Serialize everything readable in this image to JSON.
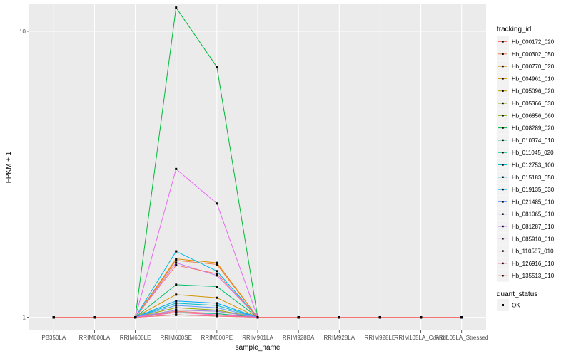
{
  "chart_data": {
    "type": "line",
    "title": "",
    "xlabel": "sample_name",
    "ylabel": "FPKM + 1",
    "y_scale": "log10",
    "y_ticks": [
      1,
      10
    ],
    "y_tick_labels": [
      "1",
      "10"
    ],
    "ylim": [
      0.9,
      12.5
    ],
    "grid": true,
    "legend_position": "right",
    "categories": [
      "PB350LA",
      "RRIM600LA",
      "RRIM600LE",
      "RRIM600SE",
      "RRIM600PE",
      "RRIM901LA",
      "RRIM928BA",
      "RRIM928LA",
      "RRIM928LE",
      "RRIM105LA_Control",
      "RRII105LA_Stressed"
    ],
    "series": [
      {
        "name": "Hb_000172_020",
        "color": "#F8766D",
        "values": [
          1,
          1,
          1,
          1.05,
          1.03,
          1,
          1,
          1,
          1,
          1,
          1
        ]
      },
      {
        "name": "Hb_000302_050",
        "color": "#EF7F49",
        "values": [
          1,
          1,
          1,
          1.58,
          1.53,
          1,
          1,
          1,
          1,
          1,
          1
        ]
      },
      {
        "name": "Hb_000770_020",
        "color": "#E08B00",
        "values": [
          1,
          1,
          1,
          1.6,
          1.55,
          1,
          1,
          1,
          1,
          1,
          1
        ]
      },
      {
        "name": "Hb_004961_010",
        "color": "#CE9700",
        "values": [
          1,
          1,
          1,
          1.2,
          1.17,
          1,
          1,
          1,
          1,
          1,
          1
        ]
      },
      {
        "name": "Hb_005096_020",
        "color": "#B79F00",
        "values": [
          1,
          1,
          1,
          1.06,
          1.05,
          1,
          1,
          1,
          1,
          1,
          1
        ]
      },
      {
        "name": "Hb_005366_030",
        "color": "#9AA800",
        "values": [
          1,
          1,
          1,
          1.08,
          1.06,
          1,
          1,
          1,
          1,
          1,
          1
        ]
      },
      {
        "name": "Hb_006856_060",
        "color": "#72B000",
        "values": [
          1,
          1,
          1,
          1.02,
          1.01,
          1,
          1,
          1,
          1,
          1,
          1
        ]
      },
      {
        "name": "Hb_008289_020",
        "color": "#00BA38",
        "values": [
          1,
          1,
          1,
          12.1,
          7.5,
          1,
          1,
          1,
          1,
          1,
          1
        ]
      },
      {
        "name": "Hb_010374_010",
        "color": "#00BE6C",
        "values": [
          1,
          1,
          1,
          1.3,
          1.28,
          1,
          1,
          1,
          1,
          1,
          1
        ]
      },
      {
        "name": "Hb_011045_020",
        "color": "#00C08B",
        "values": [
          1,
          1,
          1,
          1.04,
          1.03,
          1,
          1,
          1,
          1,
          1,
          1
        ]
      },
      {
        "name": "Hb_012753_100",
        "color": "#00BFC4",
        "values": [
          1,
          1,
          1,
          1.12,
          1.1,
          1,
          1,
          1,
          1,
          1,
          1
        ]
      },
      {
        "name": "Hb_015183_050",
        "color": "#00B8E7",
        "values": [
          1,
          1,
          1,
          1.7,
          1.45,
          1,
          1,
          1,
          1,
          1,
          1
        ]
      },
      {
        "name": "Hb_019135_030",
        "color": "#00A9FF",
        "values": [
          1,
          1,
          1,
          1.14,
          1.12,
          1,
          1,
          1,
          1,
          1,
          1
        ]
      },
      {
        "name": "Hb_021485_010",
        "color": "#619CFF",
        "values": [
          1,
          1,
          1,
          1.1,
          1.08,
          1,
          1,
          1,
          1,
          1,
          1
        ]
      },
      {
        "name": "Hb_081065_010",
        "color": "#9F8CFF",
        "values": [
          1,
          1,
          1,
          1.06,
          1.05,
          1,
          1,
          1,
          1,
          1,
          1
        ]
      },
      {
        "name": "Hb_081287_010",
        "color": "#C77CFF",
        "values": [
          1,
          1,
          1,
          1.55,
          1.4,
          1,
          1,
          1,
          1,
          1,
          1
        ]
      },
      {
        "name": "Hb_085910_010",
        "color": "#E76BF3",
        "values": [
          1,
          1,
          1,
          3.3,
          2.5,
          1,
          1,
          1,
          1,
          1,
          1
        ]
      },
      {
        "name": "Hb_110587_010",
        "color": "#FF62BC",
        "values": [
          1,
          1,
          1,
          1.04,
          1.02,
          1,
          1,
          1,
          1,
          1,
          1
        ]
      },
      {
        "name": "Hb_126916_010",
        "color": "#FF6C91",
        "values": [
          1,
          1,
          1,
          1.02,
          1.01,
          1,
          1,
          1,
          1,
          1,
          1
        ]
      },
      {
        "name": "Hb_135513_010",
        "color": "#F8766D",
        "values": [
          1,
          1,
          1,
          1.52,
          1.42,
          1,
          1,
          1,
          1,
          1,
          1
        ]
      }
    ]
  },
  "legend": {
    "title": "tracking_id",
    "quant_title": "quant_status",
    "quant_items": [
      {
        "label": "OK",
        "shape": "square",
        "color": "#000000"
      }
    ]
  },
  "colors": {
    "panel": "#EBEBEB",
    "grid_major": "#FFFFFF",
    "grid_minor": "#F2F2F2",
    "point": "#000000"
  }
}
